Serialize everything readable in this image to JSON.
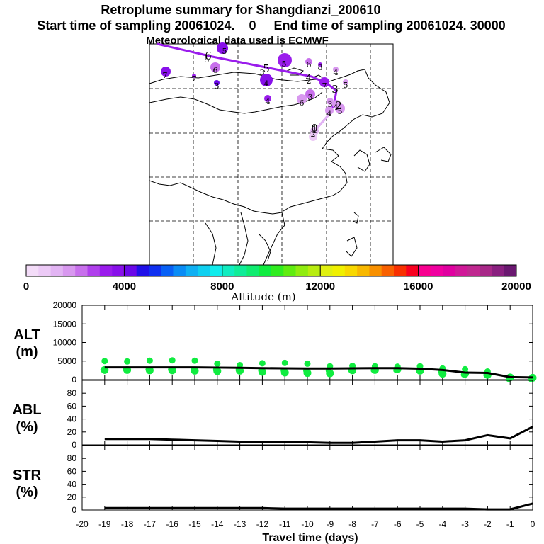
{
  "header": {
    "title": "Retroplume summary for Shangdianzi_200610",
    "subtitle": "Start time of sampling 20061024.    0     End time of sampling 20061024. 30000",
    "met_note": "Meteorological data used is ECMWF"
  },
  "colorbar": {
    "label": "Altitude  (m)",
    "ticks": [
      "0",
      "4000",
      "8000",
      "12000",
      "16000",
      "20000"
    ],
    "range": [
      0,
      20000
    ],
    "colors": [
      "#f3dcf8",
      "#eccaf6",
      "#e2b4f3",
      "#d898ef",
      "#c870ec",
      "#b040ec",
      "#9a1cec",
      "#8810ea",
      "#6a08e8",
      "#2010e8",
      "#1030f0",
      "#0860f5",
      "#0a8cf5",
      "#10b0f3",
      "#10d0f0",
      "#10ecec",
      "#10ecc0",
      "#10ec98",
      "#10ec70",
      "#10ec40",
      "#30ec20",
      "#60ec10",
      "#90ec10",
      "#b8ec10",
      "#e0f010",
      "#f0f000",
      "#f8d800",
      "#f8b800",
      "#f89000",
      "#f86000",
      "#f83000",
      "#f80020",
      "#f80090",
      "#f000a0",
      "#e000a0",
      "#d01898",
      "#c02890",
      "#a82888",
      "#8a2080",
      "#6a1870"
    ]
  },
  "map": {
    "trajectory_labels": [
      {
        "text": "6",
        "x": 0,
        "y": 0,
        "color": "#8810ea"
      },
      {
        "text": "5",
        "x": 0,
        "y": 0,
        "color": "#8810ea"
      },
      {
        "text": "4",
        "x": 0,
        "y": 0,
        "color": "#8810ea"
      },
      {
        "text": "3",
        "x": 0,
        "y": 0,
        "color": "#8810ea"
      },
      {
        "text": "2",
        "x": 0,
        "y": 0,
        "color": "#8810ea"
      },
      {
        "text": "1",
        "x": 0,
        "y": 0,
        "color": "#8810ea"
      },
      {
        "text": "0",
        "x": 0,
        "y": 0,
        "color": "#8810ea"
      }
    ],
    "cluster_labels": [
      "5",
      "7",
      "6",
      "7",
      "4",
      "5",
      "6",
      "8",
      "7",
      "4",
      "5",
      "3",
      "6",
      "4",
      "5",
      "4",
      "3",
      "2",
      "3",
      "4",
      "5",
      "3",
      "2"
    ]
  },
  "chart_data": [
    {
      "type": "line",
      "panel": "ALT",
      "title": "ALT",
      "ylabel_line1": "ALT",
      "ylabel_line2": "(m)",
      "xlabel": "Travel time (days)",
      "xlim": [
        -20,
        0
      ],
      "ylim": [
        0,
        20000
      ],
      "yticks": [
        "0",
        "5000",
        "10000",
        "15000",
        "20000"
      ],
      "x": [
        -19,
        -18,
        -17,
        -16,
        -15,
        -14,
        -13,
        -12,
        -11,
        -10,
        -9,
        -8,
        -7,
        -6,
        -5,
        -4,
        -3,
        -2,
        -1,
        0
      ],
      "series": [
        {
          "name": "mean altitude",
          "values": [
            3300,
            3300,
            3300,
            3300,
            3300,
            3250,
            3200,
            3100,
            3050,
            3000,
            3000,
            3050,
            3100,
            3100,
            2950,
            2600,
            1900,
            1800,
            700,
            600
          ]
        },
        {
          "name": "upper cluster altitude",
          "values": [
            5000,
            4900,
            5100,
            5200,
            5100,
            4300,
            3900,
            4400,
            4500,
            4300,
            3600,
            3700,
            3600,
            3500,
            3600,
            3000,
            2800,
            2200,
            700,
            600
          ]
        },
        {
          "name": "lower cluster altitude",
          "values": [
            2600,
            2600,
            2500,
            2500,
            2400,
            2300,
            2400,
            2100,
            1900,
            1800,
            1700,
            2500,
            2600,
            2800,
            2400,
            1600,
            1600,
            1300,
            600,
            500
          ]
        }
      ]
    },
    {
      "type": "line",
      "panel": "ABL",
      "ylabel_line1": "ABL",
      "ylabel_line2": "(%)",
      "xlim": [
        -20,
        0
      ],
      "ylim": [
        0,
        100
      ],
      "yticks": [
        "0",
        "20",
        "40",
        "60",
        "80"
      ],
      "x": [
        -19,
        -18,
        -17,
        -16,
        -15,
        -14,
        -13,
        -12,
        -11,
        -10,
        -9,
        -8,
        -7,
        -6,
        -5,
        -4,
        -3,
        -2,
        -1,
        0
      ],
      "values": [
        9,
        9,
        9,
        8,
        7,
        6,
        5,
        5,
        4,
        4,
        3,
        3,
        5,
        7,
        7,
        5,
        7,
        15,
        10,
        28
      ]
    },
    {
      "type": "line",
      "panel": "STR",
      "ylabel_line1": "STR",
      "ylabel_line2": "(%)",
      "xlim": [
        -20,
        0
      ],
      "ylim": [
        0,
        100
      ],
      "yticks": [
        "0",
        "20",
        "40",
        "60",
        "80"
      ],
      "xticks": [
        "-20",
        "-19",
        "-18",
        "-17",
        "-16",
        "-15",
        "-14",
        "-13",
        "-12",
        "-11",
        "-10",
        "-9",
        "-8",
        "-7",
        "-6",
        "-5",
        "-4",
        "-3",
        "-2",
        "-1",
        "0"
      ],
      "x": [
        -19,
        -18,
        -17,
        -16,
        -15,
        -14,
        -13,
        -12,
        -11,
        -10,
        -9,
        -8,
        -7,
        -6,
        -5,
        -4,
        -3,
        -2,
        -1,
        0
      ],
      "values": [
        3,
        3,
        3,
        3,
        3,
        3,
        3,
        3,
        2,
        2,
        2,
        2,
        2,
        2,
        2,
        2,
        2,
        1,
        1,
        10
      ]
    }
  ]
}
